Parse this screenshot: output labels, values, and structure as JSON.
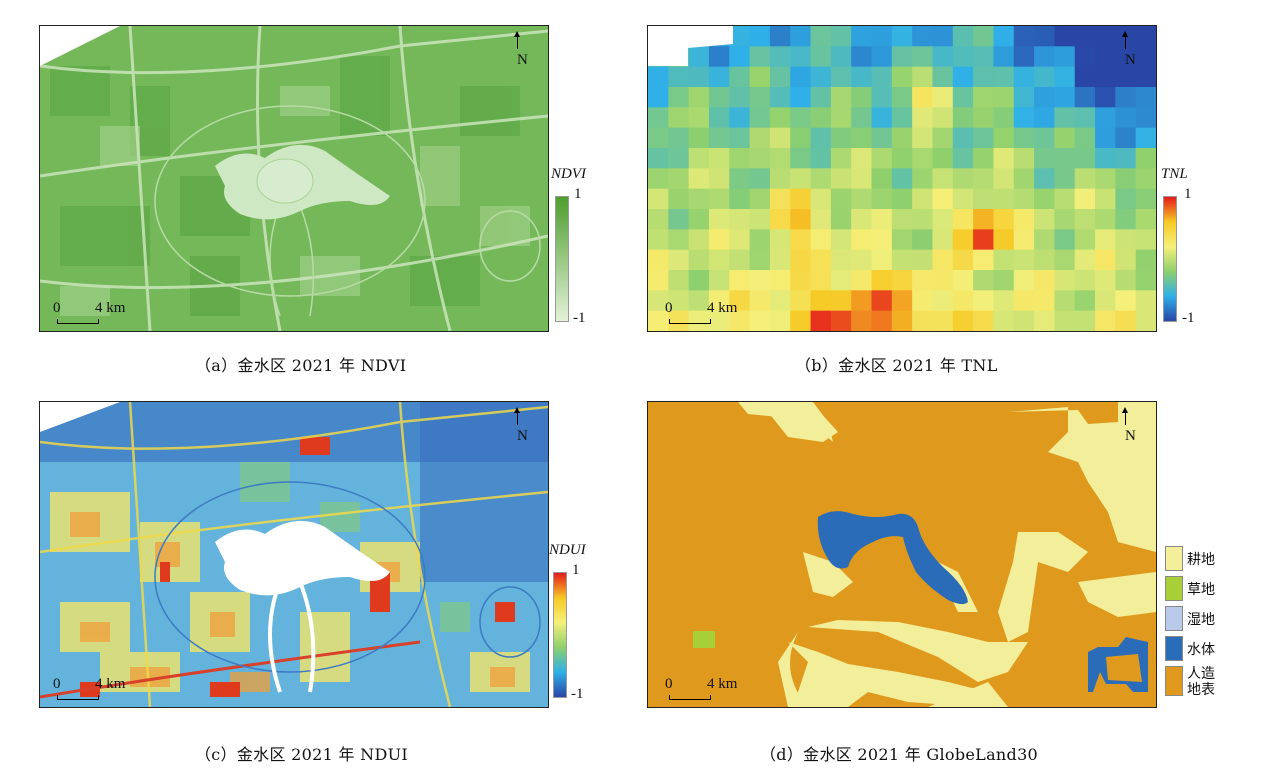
{
  "panels": {
    "a": {
      "caption": "（a）金水区 2021 年 NDVI",
      "north_label": "N",
      "scale_zero": "0",
      "scale_label": "4 km",
      "legend_title": "NDVI",
      "legend_max": "1",
      "legend_min": "-1",
      "ramp_colors": [
        "#4e9e2e",
        "#e3f1d7"
      ]
    },
    "b": {
      "caption": "（b）金水区 2021 年 TNL",
      "north_label": "N",
      "scale_zero": "0",
      "scale_label": "4 km",
      "legend_title": "TNL",
      "legend_max": "1",
      "legend_min": "-1",
      "ramp_colors": [
        "#e41a1c",
        "#f6c924",
        "#f5f07a",
        "#8fd06d",
        "#2fb0e8",
        "#2946a6"
      ]
    },
    "c": {
      "caption": "（c）金水区 2021 年 NDUI",
      "north_label": "N",
      "scale_zero": "0",
      "scale_label": "4 km",
      "legend_title": "NDUI",
      "legend_max": "1",
      "legend_min": "-1",
      "ramp_colors": [
        "#e41a1c",
        "#f6c924",
        "#f5f07a",
        "#8fd06d",
        "#2fb0e8",
        "#2946a6"
      ]
    },
    "d": {
      "caption": "（d）金水区 2021 年 GlobeLand30",
      "north_label": "N",
      "scale_zero": "0",
      "scale_label": "4 km",
      "classes": [
        {
          "label": "耕地",
          "color": "#f3ee9a"
        },
        {
          "label": "草地",
          "color": "#a8cf38"
        },
        {
          "label": "湿地",
          "color": "#b9c9ea"
        },
        {
          "label": "水体",
          "color": "#2a6cb8"
        },
        {
          "label": "人造地表",
          "color": "#df9a1e"
        }
      ]
    }
  }
}
